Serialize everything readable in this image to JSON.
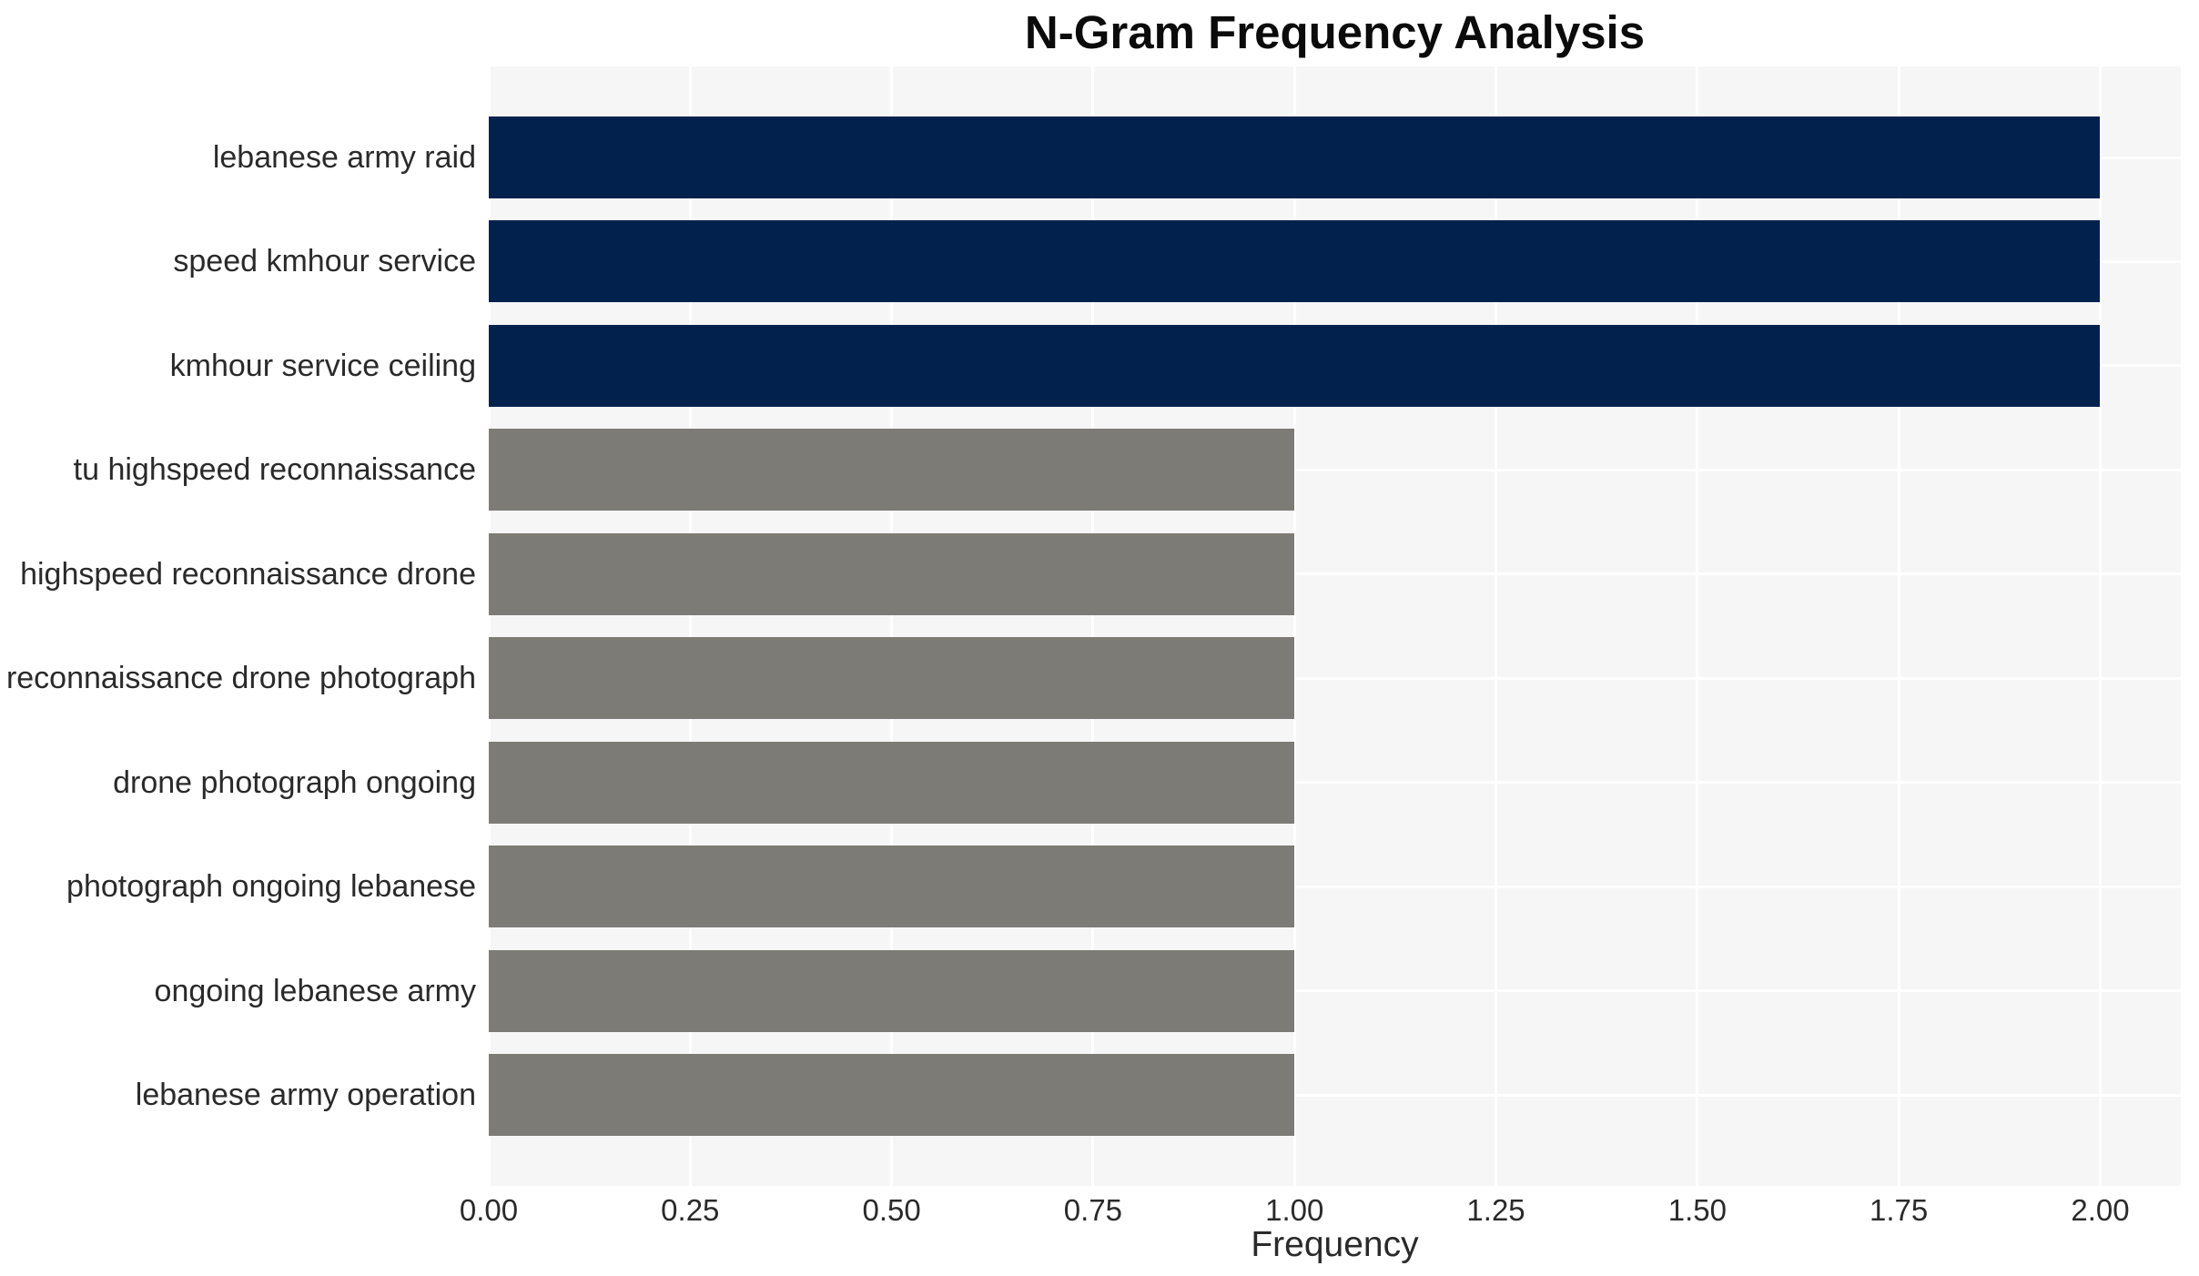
{
  "chart_data": {
    "type": "bar",
    "orientation": "horizontal",
    "title": "N-Gram Frequency Analysis",
    "xlabel": "Frequency",
    "ylabel": "",
    "categories": [
      "lebanese army raid",
      "speed kmhour service",
      "kmhour service ceiling",
      "tu highspeed reconnaissance",
      "highspeed reconnaissance drone",
      "reconnaissance drone photograph",
      "drone photograph ongoing",
      "photograph ongoing lebanese",
      "ongoing lebanese army",
      "lebanese army operation"
    ],
    "values": [
      2,
      2,
      2,
      1,
      1,
      1,
      1,
      1,
      1,
      1
    ],
    "bar_colors": [
      "#02224d",
      "#02224d",
      "#02224d",
      "#7c7b76",
      "#7c7b76",
      "#7c7b76",
      "#7c7b76",
      "#7c7b76",
      "#7c7b76",
      "#7c7b76"
    ],
    "xlim": [
      0,
      2.1
    ],
    "xticks": [
      {
        "value": 0.0,
        "label": "0.00"
      },
      {
        "value": 0.25,
        "label": "0.25"
      },
      {
        "value": 0.5,
        "label": "0.50"
      },
      {
        "value": 0.75,
        "label": "0.75"
      },
      {
        "value": 1.0,
        "label": "1.00"
      },
      {
        "value": 1.25,
        "label": "1.25"
      },
      {
        "value": 1.5,
        "label": "1.50"
      },
      {
        "value": 1.75,
        "label": "1.75"
      },
      {
        "value": 2.0,
        "label": "2.00"
      }
    ],
    "grid": {
      "show": true,
      "grid_color": "#ffffff",
      "plot_background": "#f6f6f6"
    },
    "legend": null
  },
  "styles": {
    "navy": "#02224d",
    "gray": "#7c7b76",
    "text": "#2a2a2a",
    "title_color": "#0b0b0b",
    "page_background": "#ffffff"
  }
}
